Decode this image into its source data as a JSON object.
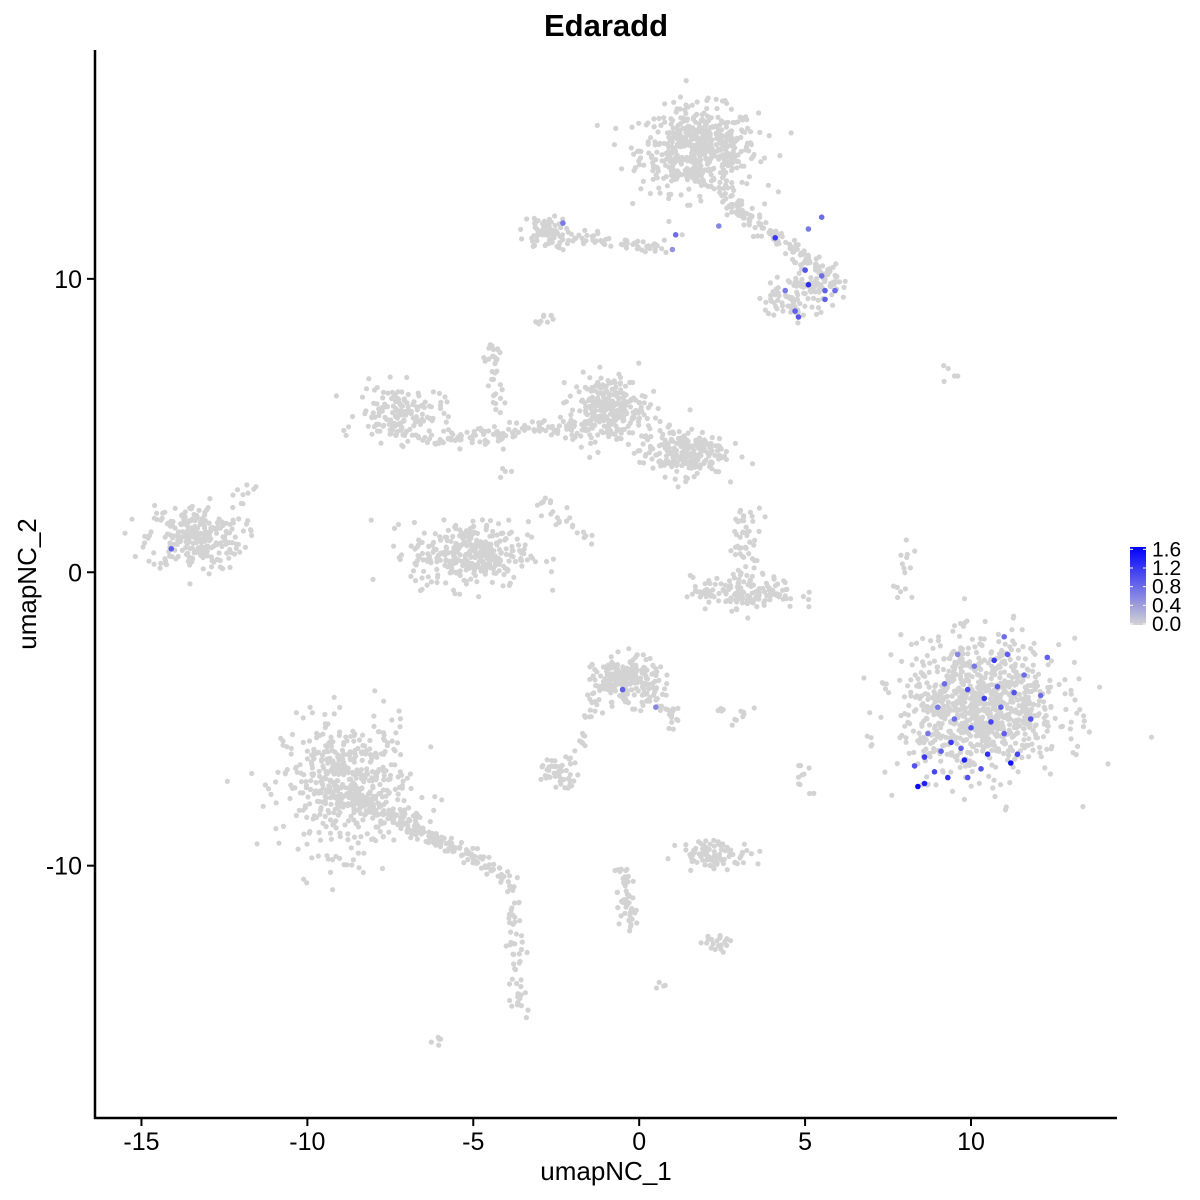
{
  "chart_data": {
    "type": "scatter",
    "title": "Edaradd",
    "xlabel": "umapNC_1",
    "ylabel": "umapNC_2",
    "xlim": [
      -16.4,
      14.4
    ],
    "ylim": [
      -18.6,
      17.8
    ],
    "x_ticks": [
      -15,
      -10,
      -5,
      0,
      5,
      10
    ],
    "y_ticks": [
      -10,
      0,
      10
    ],
    "x_tick_labels": [
      "-15",
      "-10",
      "-5",
      "0",
      "5",
      "10"
    ],
    "y_tick_labels": [
      "-10",
      "0",
      "10"
    ],
    "grid": false,
    "color_scale": {
      "low": "#d3d3d3",
      "high": "#0000ff",
      "min": 0,
      "max": 1.65
    },
    "legend": {
      "position": "right",
      "ticks": [
        1.6,
        1.2,
        0.8,
        0.4,
        0.0
      ],
      "tick_labels": [
        "1.6",
        "1.2",
        "0.8",
        "0.4",
        "0.0"
      ]
    },
    "background_clusters": [
      {
        "cx": 1.8,
        "cy": 14.4,
        "sx": 1.1,
        "sy": 0.9,
        "n": 550
      },
      {
        "cx": -13.4,
        "cy": 1.2,
        "sx": 0.9,
        "sy": 0.7,
        "n": 260
      },
      {
        "cx": -8.8,
        "cy": -7.3,
        "sx": 1.2,
        "sy": 1.4,
        "n": 520
      },
      {
        "cx": -7.2,
        "cy": 5.4,
        "sx": 0.8,
        "sy": 0.6,
        "n": 160
      },
      {
        "cx": -5.1,
        "cy": 0.6,
        "sx": 1.1,
        "sy": 0.7,
        "n": 330
      },
      {
        "cx": -0.9,
        "cy": 5.6,
        "sx": 0.7,
        "sy": 0.7,
        "n": 260
      },
      {
        "cx": 1.3,
        "cy": 4.1,
        "sx": 0.8,
        "sy": 0.5,
        "n": 220
      },
      {
        "cx": 3.2,
        "cy": -0.7,
        "sx": 1.0,
        "sy": 0.35,
        "n": 150
      },
      {
        "cx": 10.3,
        "cy": -4.6,
        "sx": 1.5,
        "sy": 1.4,
        "n": 950
      },
      {
        "cx": -0.4,
        "cy": -3.7,
        "sx": 0.6,
        "sy": 0.5,
        "n": 200
      },
      {
        "cx": -2.4,
        "cy": -6.8,
        "sx": 0.4,
        "sy": 0.3,
        "n": 50
      },
      {
        "cx": 2.3,
        "cy": -9.6,
        "sx": 0.7,
        "sy": 0.3,
        "n": 90
      },
      {
        "cx": 3.2,
        "cy": 1.0,
        "sx": 0.3,
        "sy": 0.8,
        "n": 50
      },
      {
        "cx": 4.5,
        "cy": 9.3,
        "sx": 0.5,
        "sy": 0.4,
        "n": 60
      },
      {
        "cx": 5.4,
        "cy": 9.8,
        "sx": 0.5,
        "sy": 0.4,
        "n": 60
      },
      {
        "cx": -2.8,
        "cy": 11.6,
        "sx": 0.4,
        "sy": 0.35,
        "n": 70
      },
      {
        "cx": 2.3,
        "cy": -12.6,
        "sx": 0.3,
        "sy": 0.2,
        "n": 20
      }
    ],
    "background_trails": [
      {
        "from": [
          2.5,
          12.8
        ],
        "to": [
          5.8,
          10.0
        ],
        "n": 140
      },
      {
        "from": [
          -2.5,
          11.5
        ],
        "to": [
          0.8,
          11.0
        ],
        "n": 60
      },
      {
        "from": [
          -8.8,
          -7.5
        ],
        "to": [
          -3.9,
          -10.4
        ],
        "n": 200
      },
      {
        "from": [
          -3.9,
          -10.5
        ],
        "to": [
          -3.6,
          -15.2
        ],
        "n": 60
      },
      {
        "from": [
          -6.5,
          4.5
        ],
        "to": [
          -1.5,
          5.0
        ],
        "n": 120
      },
      {
        "from": [
          -4.5,
          7.5
        ],
        "to": [
          -4.0,
          3.0
        ],
        "n": 30
      },
      {
        "from": [
          -3.0,
          2.5
        ],
        "to": [
          -1.5,
          1.0
        ],
        "n": 25
      },
      {
        "from": [
          -0.5,
          -10.0
        ],
        "to": [
          -0.2,
          -12.2
        ],
        "n": 50
      },
      {
        "from": [
          -1.0,
          -3.5
        ],
        "to": [
          -1.8,
          -6.0
        ],
        "n": 30
      },
      {
        "from": [
          0.2,
          -4.0
        ],
        "to": [
          1.2,
          -5.3
        ],
        "n": 30
      },
      {
        "from": [
          7.8,
          -0.8
        ],
        "to": [
          8.2,
          0.9
        ],
        "n": 15
      },
      {
        "from": [
          4.9,
          -6.6
        ],
        "to": [
          5.1,
          -7.4
        ],
        "n": 10
      },
      {
        "from": [
          2.4,
          -5.0
        ],
        "to": [
          3.4,
          -4.8
        ],
        "n": 12
      },
      {
        "from": [
          9.2,
          6.6
        ],
        "to": [
          9.6,
          6.8
        ],
        "n": 5
      },
      {
        "from": [
          -6.1,
          -16.0
        ],
        "to": [
          -5.9,
          -15.8
        ],
        "n": 5
      },
      {
        "from": [
          -3.0,
          8.5
        ],
        "to": [
          -2.7,
          8.9
        ],
        "n": 10
      },
      {
        "from": [
          -4.6,
          7.2
        ],
        "to": [
          -4.3,
          7.7
        ],
        "n": 12
      },
      {
        "from": [
          0.5,
          -14.0
        ],
        "to": [
          0.7,
          -14.2
        ],
        "n": 4
      },
      {
        "from": [
          -12.3,
          2.6
        ],
        "to": [
          -11.5,
          2.8
        ],
        "n": 8
      }
    ],
    "expressed_points": [
      {
        "x": -14.1,
        "y": 0.8,
        "v": 0.9
      },
      {
        "x": -2.3,
        "y": 11.9,
        "v": 0.7
      },
      {
        "x": 1.1,
        "y": 11.5,
        "v": 0.8
      },
      {
        "x": 1.0,
        "y": 11.0,
        "v": 0.5
      },
      {
        "x": 2.4,
        "y": 11.8,
        "v": 0.6
      },
      {
        "x": 4.1,
        "y": 11.4,
        "v": 1.2
      },
      {
        "x": 5.1,
        "y": 11.7,
        "v": 0.7
      },
      {
        "x": 5.5,
        "y": 12.1,
        "v": 0.8
      },
      {
        "x": 5.0,
        "y": 10.3,
        "v": 1.0
      },
      {
        "x": 5.1,
        "y": 9.8,
        "v": 1.3
      },
      {
        "x": 5.6,
        "y": 9.6,
        "v": 0.9
      },
      {
        "x": 5.9,
        "y": 9.6,
        "v": 0.8
      },
      {
        "x": 5.6,
        "y": 9.3,
        "v": 0.9
      },
      {
        "x": 4.4,
        "y": 9.6,
        "v": 0.7
      },
      {
        "x": 4.7,
        "y": 8.9,
        "v": 0.9
      },
      {
        "x": 4.8,
        "y": 8.7,
        "v": 1.0
      },
      {
        "x": 5.5,
        "y": 10.1,
        "v": 0.8
      },
      {
        "x": -0.5,
        "y": -4.0,
        "v": 0.9
      },
      {
        "x": 0.5,
        "y": -4.6,
        "v": 0.6
      },
      {
        "x": 8.4,
        "y": -7.3,
        "v": 1.6
      },
      {
        "x": 8.6,
        "y": -6.3,
        "v": 1.2
      },
      {
        "x": 8.3,
        "y": -6.6,
        "v": 1.0
      },
      {
        "x": 8.9,
        "y": -6.8,
        "v": 1.1
      },
      {
        "x": 9.3,
        "y": -7.0,
        "v": 1.3
      },
      {
        "x": 9.1,
        "y": -6.1,
        "v": 0.9
      },
      {
        "x": 9.8,
        "y": -6.4,
        "v": 1.4
      },
      {
        "x": 10.3,
        "y": -6.7,
        "v": 1.0
      },
      {
        "x": 10.5,
        "y": -6.2,
        "v": 1.3
      },
      {
        "x": 11.2,
        "y": -6.5,
        "v": 1.5
      },
      {
        "x": 11.4,
        "y": -6.2,
        "v": 1.1
      },
      {
        "x": 11.0,
        "y": -5.5,
        "v": 0.9
      },
      {
        "x": 10.0,
        "y": -5.3,
        "v": 1.0
      },
      {
        "x": 9.5,
        "y": -5.0,
        "v": 0.8
      },
      {
        "x": 9.0,
        "y": -4.6,
        "v": 0.7
      },
      {
        "x": 9.2,
        "y": -3.8,
        "v": 0.8
      },
      {
        "x": 9.9,
        "y": -4.0,
        "v": 1.0
      },
      {
        "x": 10.4,
        "y": -4.3,
        "v": 1.2
      },
      {
        "x": 10.8,
        "y": -3.9,
        "v": 0.9
      },
      {
        "x": 11.3,
        "y": -4.1,
        "v": 1.0
      },
      {
        "x": 11.6,
        "y": -3.5,
        "v": 0.8
      },
      {
        "x": 10.7,
        "y": -3.0,
        "v": 1.2
      },
      {
        "x": 11.1,
        "y": -2.8,
        "v": 0.9
      },
      {
        "x": 10.1,
        "y": -3.2,
        "v": 0.7
      },
      {
        "x": 9.6,
        "y": -2.8,
        "v": 0.6
      },
      {
        "x": 11.0,
        "y": -2.2,
        "v": 0.8
      },
      {
        "x": 12.3,
        "y": -2.9,
        "v": 0.9
      },
      {
        "x": 12.1,
        "y": -4.2,
        "v": 0.8
      },
      {
        "x": 11.8,
        "y": -5.0,
        "v": 1.0
      },
      {
        "x": 10.6,
        "y": -5.1,
        "v": 1.1
      },
      {
        "x": 9.7,
        "y": -6.0,
        "v": 0.9
      },
      {
        "x": 8.7,
        "y": -5.5,
        "v": 0.7
      },
      {
        "x": 9.4,
        "y": -5.8,
        "v": 1.2
      },
      {
        "x": 10.9,
        "y": -4.6,
        "v": 0.9
      },
      {
        "x": 8.6,
        "y": -7.2,
        "v": 1.4
      },
      {
        "x": 9.9,
        "y": -7.0,
        "v": 1.0
      }
    ]
  }
}
